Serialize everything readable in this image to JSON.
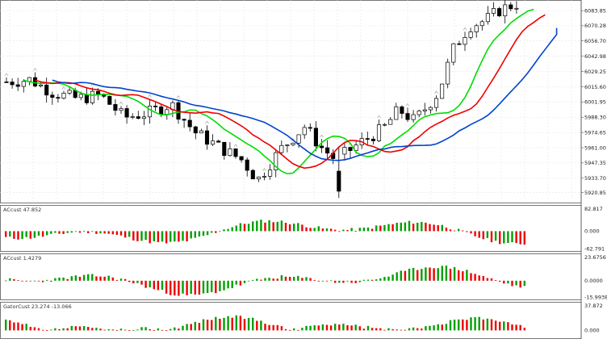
{
  "chart_data": [
    {
      "type": "candlestick",
      "symbol_pane": "main",
      "y_ticks": [
        "6083.85",
        "6070.28",
        "6056.70",
        "6042.98",
        "6029.25",
        "6015.60",
        "6001.95",
        "5988.30",
        "5974.65",
        "5961.00",
        "5947.35",
        "5933.70",
        "5920.85"
      ],
      "ylim": [
        5914.0,
        6089.0
      ],
      "grid": true,
      "overlays": [
        {
          "name": "",
          "color": "#00dd00"
        },
        {
          "name": "",
          "color": "#ee0000"
        },
        {
          "name": "",
          "color": "#0044cc"
        }
      ]
    },
    {
      "type": "histogram",
      "label": "ACcust 47.852",
      "y_ticks": [
        "82.817",
        "0.000",
        "-62.791"
      ],
      "ylim": [
        -62.791,
        82.817
      ],
      "up_color": "#00a000",
      "down_color": "#ee0000"
    },
    {
      "type": "histogram",
      "label": "ACcust 1.4279",
      "y_ticks": [
        "23.6756",
        "0.0000",
        "-15.9938"
      ],
      "ylim": [
        -15.9938,
        23.6756
      ],
      "up_color": "#00a000",
      "down_color": "#ee0000"
    },
    {
      "type": "histogram",
      "label": "GatorCust 23.274 -13.066",
      "y_ticks": [
        "37.872",
        "0.000"
      ],
      "ylim": [
        -8.0,
        37.872
      ],
      "up_color": "#00a000",
      "down_color": "#ee0000"
    }
  ]
}
